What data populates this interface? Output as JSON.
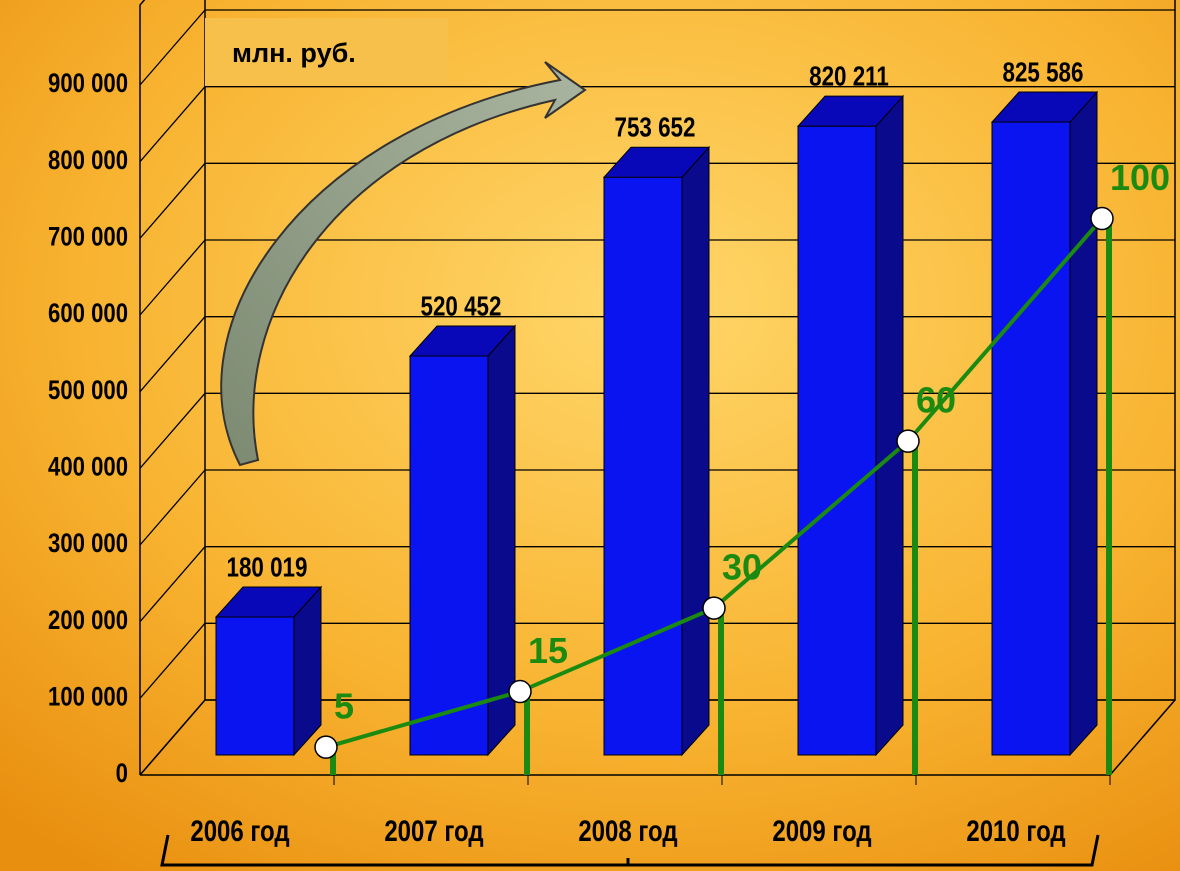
{
  "chart_data": {
    "type": "bar3d-line",
    "unit_label": "млн. руб.",
    "categories": [
      "2006 год",
      "2007 год",
      "2008 год",
      "2009 год",
      "2010 год"
    ],
    "series": [
      {
        "color": "#0a14f0",
        "values": [
          180019,
          520452,
          753652,
          820211,
          825586
        ],
        "value_labels": [
          "180 019",
          "520 452",
          "753 652",
          "820 211",
          "825 586"
        ]
      },
      {
        "color": "#1a8a10",
        "axis": "y2",
        "values": [
          5,
          15,
          30,
          60,
          100
        ]
      }
    ],
    "ylim": [
      0,
      900000
    ],
    "yticks": [
      0,
      {
        "value": 100000,
        "label": "100 000"
      },
      {
        "value": 200000,
        "label": "200 000"
      },
      {
        "value": 300000,
        "label": "300 000"
      },
      {
        "value": 400000,
        "label": "400 000"
      },
      {
        "value": 500000,
        "label": "500 000"
      },
      {
        "value": 600000,
        "label": "600 000"
      },
      {
        "value": 700000,
        "label": "700 000"
      },
      {
        "value": 800000,
        "label": "800 000"
      },
      {
        "value": 900000,
        "label": "900 000"
      }
    ],
    "y2lim": [
      0,
      124
    ],
    "grid": true
  }
}
